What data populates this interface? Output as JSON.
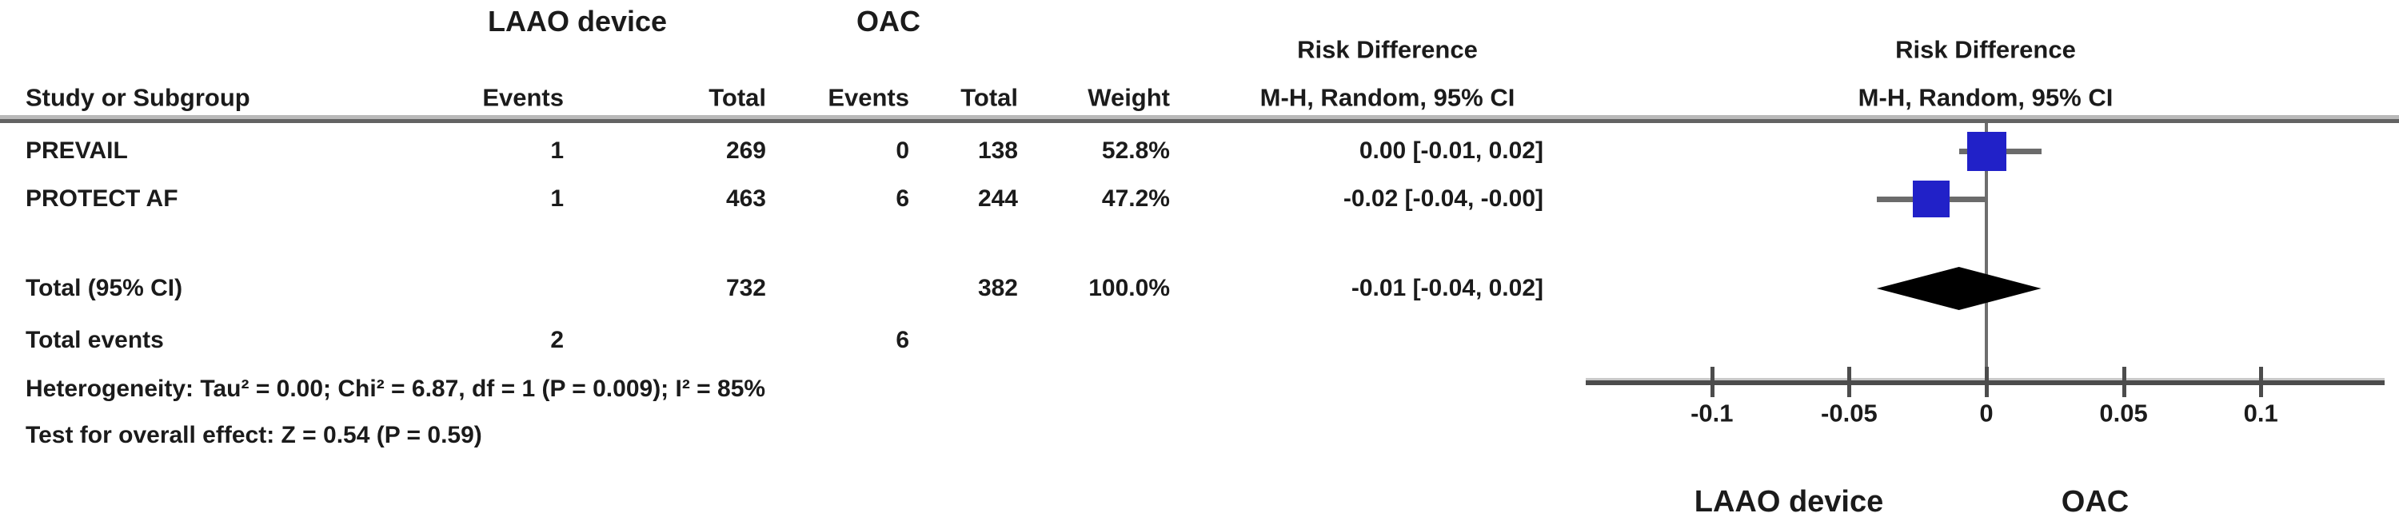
{
  "table": {
    "group_headers": {
      "laao": "LAAO device",
      "oac": "OAC"
    },
    "col_headers": {
      "study": "Study or Subgroup",
      "events_laao": "Events",
      "total_laao": "Total",
      "events_oac": "Events",
      "total_oac": "Total",
      "weight": "Weight",
      "rd_line1": "Risk Difference",
      "rd_line2": "M-H, Random, 95% CI"
    },
    "rows": [
      {
        "study": "PREVAIL",
        "events_laao": "1",
        "total_laao": "269",
        "events_oac": "0",
        "total_oac": "138",
        "weight": "52.8%",
        "rd": "0.00 [-0.01, 0.02]"
      },
      {
        "study": "PROTECT AF",
        "events_laao": "1",
        "total_laao": "463",
        "events_oac": "6",
        "total_oac": "244",
        "weight": "47.2%",
        "rd": "-0.02 [-0.04, -0.00]"
      }
    ],
    "total_row": {
      "label": "Total (95% CI)",
      "total_laao": "732",
      "total_oac": "382",
      "weight": "100.0%",
      "rd": "-0.01 [-0.04, 0.02]"
    },
    "total_events": {
      "label": "Total events",
      "events_laao": "2",
      "events_oac": "6"
    },
    "heterogeneity": "Heterogeneity: Tau² = 0.00; Chi² = 6.87, df = 1 (P = 0.009); I² = 85%",
    "overall_effect": "Test for overall effect: Z = 0.54 (P = 0.59)"
  },
  "plot": {
    "header_line1": "Risk Difference",
    "header_line2": "M-H, Random, 95% CI",
    "favours_left": "LAAO device",
    "favours_right": "OAC",
    "marker_color": "#2121c8",
    "diamond_color": "#000000"
  },
  "chart_data": {
    "type": "scatter",
    "subtype": "forest-plot",
    "title": "Risk Difference  M-H, Random, 95% CI",
    "x_ticks": [
      -0.1,
      -0.05,
      0,
      0.05,
      0.1
    ],
    "x_tick_labels": [
      "-0.1",
      "-0.05",
      "0",
      "0.05",
      "0.1"
    ],
    "xlim": [
      -0.146,
      0.145
    ],
    "xlabel_left": "LAAO device",
    "xlabel_right": "OAC",
    "studies": [
      {
        "name": "PREVAIL",
        "rd": 0.0,
        "ci_low": -0.01,
        "ci_high": 0.02,
        "weight_pct": 52.8
      },
      {
        "name": "PROTECT AF",
        "rd": -0.02,
        "ci_low": -0.04,
        "ci_high": -0.0,
        "weight_pct": 47.2
      }
    ],
    "total": {
      "name": "Total (95% CI)",
      "rd": -0.01,
      "ci_low": -0.04,
      "ci_high": 0.02,
      "weight_pct": 100.0
    }
  }
}
